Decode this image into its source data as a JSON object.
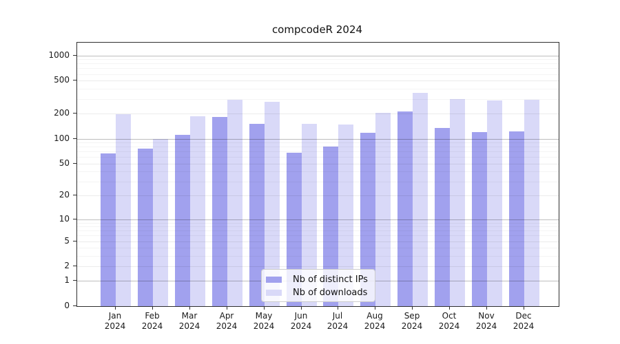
{
  "figure": {
    "title": "compcodeR 2024"
  },
  "chart_data": {
    "type": "bar",
    "title": "compcodeR 2024",
    "categories": [
      "Jan",
      "Feb",
      "Mar",
      "Apr",
      "May",
      "Jun",
      "Jul",
      "Aug",
      "Sep",
      "Oct",
      "Nov",
      "Dec"
    ],
    "category_year": "2024",
    "series": [
      {
        "name": "Nb of distinct IPs",
        "color": "#a1a1ee",
        "values": [
          66,
          76,
          112,
          184,
          150,
          67,
          81,
          119,
          213,
          134,
          121,
          123
        ]
      },
      {
        "name": "Nb of downloads",
        "color": "#d9d9f8",
        "values": [
          199,
          100,
          186,
          294,
          280,
          150,
          147,
          204,
          356,
          299,
          290,
          295
        ]
      }
    ],
    "xlabel": "",
    "ylabel": "",
    "y_scale": "log1p",
    "y_ticks": [
      0,
      1,
      2,
      5,
      10,
      20,
      50,
      100,
      200,
      500,
      1000
    ],
    "y_minor_gridlines": [
      3,
      4,
      6,
      7,
      8,
      9,
      30,
      40,
      60,
      70,
      80,
      90,
      300,
      400,
      600,
      700,
      800,
      900
    ],
    "ylim": [
      0,
      1400
    ],
    "grid": true,
    "legend_position": "lower center",
    "colors": {
      "axis": "#2e2e2e",
      "grid_major": "#bdbdbd",
      "grid_labeled": "#ebebeb",
      "grid_minor": "#f3f3f3",
      "background": "#ffffff"
    }
  }
}
